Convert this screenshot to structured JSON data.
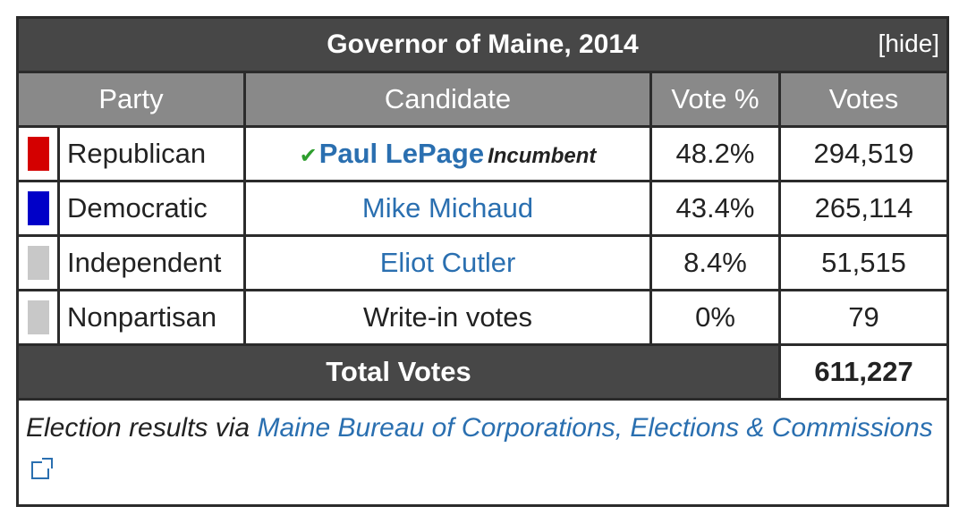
{
  "table": {
    "title": "Governor of Maine, 2014",
    "hide_label": "[hide]",
    "headers": [
      "Party",
      "Candidate",
      "Vote %",
      "Votes"
    ],
    "rows": [
      {
        "party": "Republican",
        "color": "#d40000",
        "candidate": "Paul LePage",
        "incumbent": "Incumbent",
        "winner": true,
        "percent": "48.2%",
        "votes": "294,519"
      },
      {
        "party": "Democratic",
        "color": "#0000c8",
        "candidate": "Mike Michaud",
        "percent": "43.4%",
        "votes": "265,114"
      },
      {
        "party": "Independent",
        "color": "#c8c8c8",
        "candidate": "Eliot Cutler",
        "percent": "8.4%",
        "votes": "51,515"
      },
      {
        "party": "Nonpartisan",
        "color": "#c8c8c8",
        "candidate": "Write-in votes",
        "percent": "0%",
        "votes": "79"
      }
    ],
    "total_label": "Total Votes",
    "total_value": "611,227",
    "footer_prefix": "Election results via",
    "footer_link": "Maine Bureau of Corporations, Elections & Commissions"
  }
}
